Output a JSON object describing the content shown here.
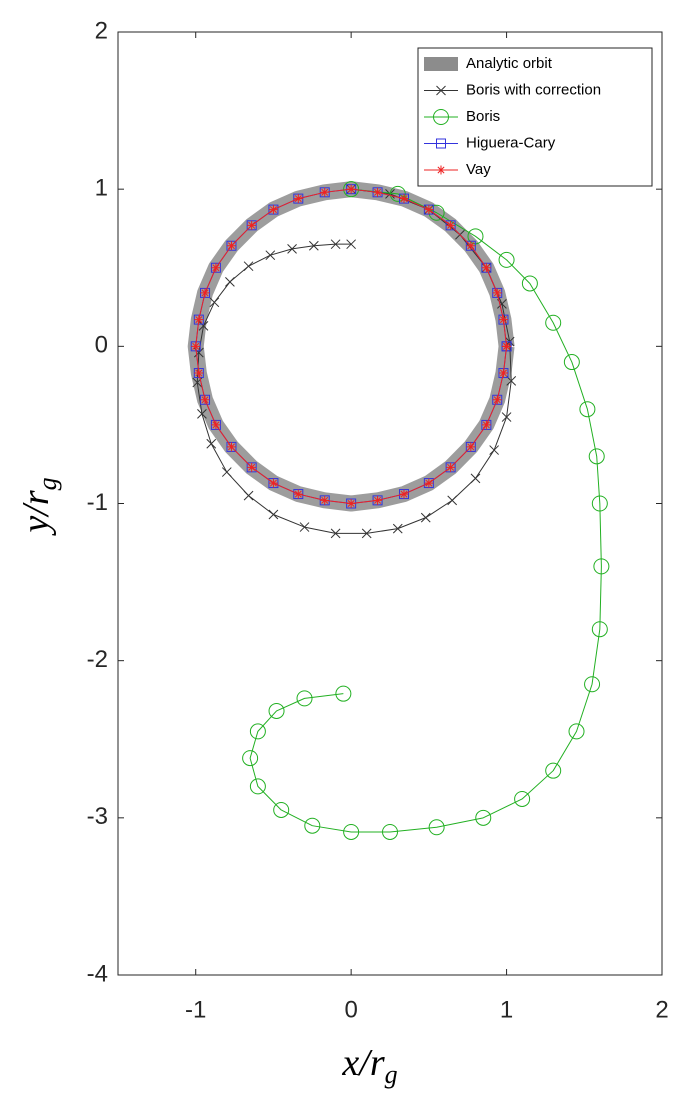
{
  "chart_data": {
    "type": "line",
    "xlabel": [
      "x/r",
      "g"
    ],
    "ylabel": [
      "y/r",
      "g"
    ],
    "xlim": [
      -1.5,
      2
    ],
    "xticks": [
      -1,
      0,
      1,
      2
    ],
    "ylim": [
      -4,
      2
    ],
    "yticks": [
      -4,
      -3,
      -2,
      -1,
      0,
      1,
      2
    ],
    "legend": "upper right",
    "series": [
      {
        "name": "Analytic orbit",
        "color": "#8c8c8c",
        "marker": "band",
        "x": [
          1,
          0.98,
          0.94,
          0.87,
          0.77,
          0.64,
          0.5,
          0.34,
          0.17,
          0,
          -0.17,
          -0.34,
          -0.5,
          -0.64,
          -0.77,
          -0.87,
          -0.94,
          -0.98,
          -1,
          -0.98,
          -0.94,
          -0.87,
          -0.77,
          -0.64,
          -0.5,
          -0.34,
          -0.17,
          0,
          0.17,
          0.34,
          0.5,
          0.64,
          0.77,
          0.87,
          0.94,
          0.98,
          1
        ],
        "y": [
          0,
          0.17,
          0.34,
          0.5,
          0.64,
          0.77,
          0.87,
          0.94,
          0.98,
          1,
          0.98,
          0.94,
          0.87,
          0.77,
          0.64,
          0.5,
          0.34,
          0.17,
          0,
          -0.17,
          -0.34,
          -0.5,
          -0.64,
          -0.77,
          -0.87,
          -0.94,
          -0.98,
          -1,
          -0.98,
          -0.94,
          -0.87,
          -0.77,
          -0.64,
          -0.5,
          -0.34,
          -0.17,
          0
        ]
      },
      {
        "name": "Boris with correction",
        "color": "#333333",
        "marker": "x",
        "x": [
          0,
          0.25,
          0.5,
          0.7,
          0.87,
          0.97,
          1.02,
          1.03,
          1.0,
          0.92,
          0.8,
          0.65,
          0.48,
          0.3,
          0.1,
          -0.1,
          -0.3,
          -0.5,
          -0.66,
          -0.8,
          -0.9,
          -0.96,
          -0.99,
          -0.98,
          -0.95,
          -0.88,
          -0.78,
          -0.66,
          -0.52,
          -0.38,
          -0.24,
          -0.1,
          0
        ],
        "y": [
          1,
          0.97,
          0.87,
          0.71,
          0.5,
          0.27,
          0.03,
          -0.22,
          -0.45,
          -0.66,
          -0.84,
          -0.98,
          -1.09,
          -1.16,
          -1.19,
          -1.19,
          -1.15,
          -1.07,
          -0.95,
          -0.8,
          -0.62,
          -0.43,
          -0.23,
          -0.04,
          0.13,
          0.28,
          0.41,
          0.51,
          0.58,
          0.62,
          0.64,
          0.65,
          0.65
        ]
      },
      {
        "name": "Boris",
        "color": "#22b022",
        "marker": "o",
        "x": [
          0,
          0.3,
          0.55,
          0.8,
          1.0,
          1.15,
          1.3,
          1.42,
          1.52,
          1.58,
          1.6,
          1.61,
          1.6,
          1.55,
          1.45,
          1.3,
          1.1,
          0.85,
          0.55,
          0.25,
          0,
          -0.25,
          -0.45,
          -0.6,
          -0.65,
          -0.6,
          -0.48,
          -0.3,
          -0.05
        ],
        "y": [
          1,
          0.97,
          0.85,
          0.7,
          0.55,
          0.4,
          0.15,
          -0.1,
          -0.4,
          -0.7,
          -1.0,
          -1.4,
          -1.8,
          -2.15,
          -2.45,
          -2.7,
          -2.88,
          -3.0,
          -3.06,
          -3.09,
          -3.09,
          -3.05,
          -2.95,
          -2.8,
          -2.62,
          -2.45,
          -2.32,
          -2.24,
          -2.21
        ]
      },
      {
        "name": "Higuera-Cary",
        "color": "#3333dd",
        "marker": "s",
        "x": [
          1,
          0.98,
          0.94,
          0.87,
          0.77,
          0.64,
          0.5,
          0.34,
          0.17,
          0,
          -0.17,
          -0.34,
          -0.5,
          -0.64,
          -0.77,
          -0.87,
          -0.94,
          -0.98,
          -1,
          -0.98,
          -0.94,
          -0.87,
          -0.77,
          -0.64,
          -0.5,
          -0.34,
          -0.17,
          0,
          0.17,
          0.34,
          0.5,
          0.64,
          0.77,
          0.87,
          0.94,
          0.98,
          1
        ],
        "y": [
          0,
          0.17,
          0.34,
          0.5,
          0.64,
          0.77,
          0.87,
          0.94,
          0.98,
          1,
          0.98,
          0.94,
          0.87,
          0.77,
          0.64,
          0.5,
          0.34,
          0.17,
          0,
          -0.17,
          -0.34,
          -0.5,
          -0.64,
          -0.77,
          -0.87,
          -0.94,
          -0.98,
          -1,
          -0.98,
          -0.94,
          -0.87,
          -0.77,
          -0.64,
          -0.5,
          -0.34,
          -0.17,
          0
        ]
      },
      {
        "name": "Vay",
        "color": "#ee2222",
        "marker": "*",
        "x": [
          1,
          0.98,
          0.94,
          0.87,
          0.77,
          0.64,
          0.5,
          0.34,
          0.17,
          0,
          -0.17,
          -0.34,
          -0.5,
          -0.64,
          -0.77,
          -0.87,
          -0.94,
          -0.98,
          -1,
          -0.98,
          -0.94,
          -0.87,
          -0.77,
          -0.64,
          -0.5,
          -0.34,
          -0.17,
          0,
          0.17,
          0.34,
          0.5,
          0.64,
          0.77,
          0.87,
          0.94,
          0.98,
          1
        ],
        "y": [
          0,
          0.17,
          0.34,
          0.5,
          0.64,
          0.77,
          0.87,
          0.94,
          0.98,
          1,
          0.98,
          0.94,
          0.87,
          0.77,
          0.64,
          0.5,
          0.34,
          0.17,
          0,
          -0.17,
          -0.34,
          -0.5,
          -0.64,
          -0.77,
          -0.87,
          -0.94,
          -0.98,
          -1,
          -0.98,
          -0.94,
          -0.87,
          -0.77,
          -0.64,
          -0.5,
          -0.34,
          -0.17,
          0
        ]
      }
    ]
  }
}
